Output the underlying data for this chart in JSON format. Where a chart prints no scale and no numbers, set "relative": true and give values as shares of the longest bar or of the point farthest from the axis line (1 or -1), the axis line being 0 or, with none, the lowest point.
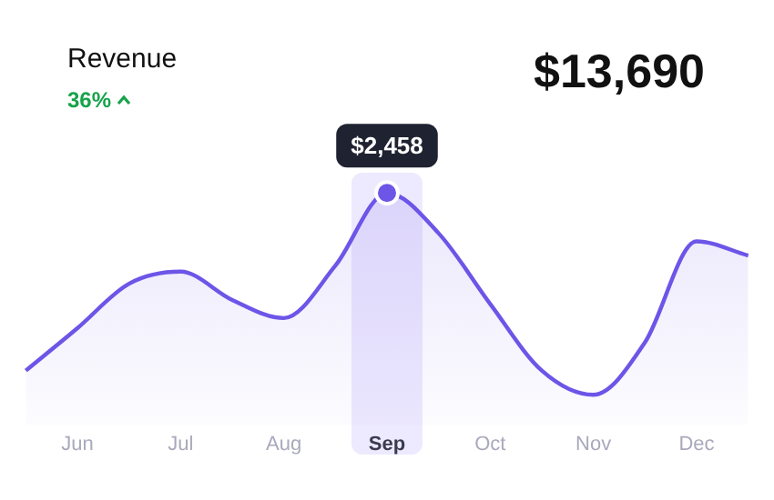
{
  "chart_data": {
    "type": "area",
    "title": "Revenue",
    "subtitle": "36%",
    "annotations": [
      "$13,690",
      {
        "text": "$2,458",
        "x": "Sep",
        "y": 1
      }
    ],
    "categories": [
      null,
      "Jun",
      null,
      "Jul",
      null,
      "Aug",
      null,
      "Sep",
      null,
      "Oct",
      null,
      "Nov",
      null,
      "Dec",
      null
    ],
    "relative": true,
    "tick_labels": "x",
    "grid": false,
    "legend": false,
    "marker": "none",
    "series": [
      {
        "color": "#6d55e8",
        "values": [
          0.12,
          0.33,
          0.55,
          0.61,
          0.47,
          0.38,
          0.64,
          1,
          0.8,
          0.45,
          0.12,
          0,
          0.26,
          0.76,
          0.69
        ]
      }
    ]
  }
}
